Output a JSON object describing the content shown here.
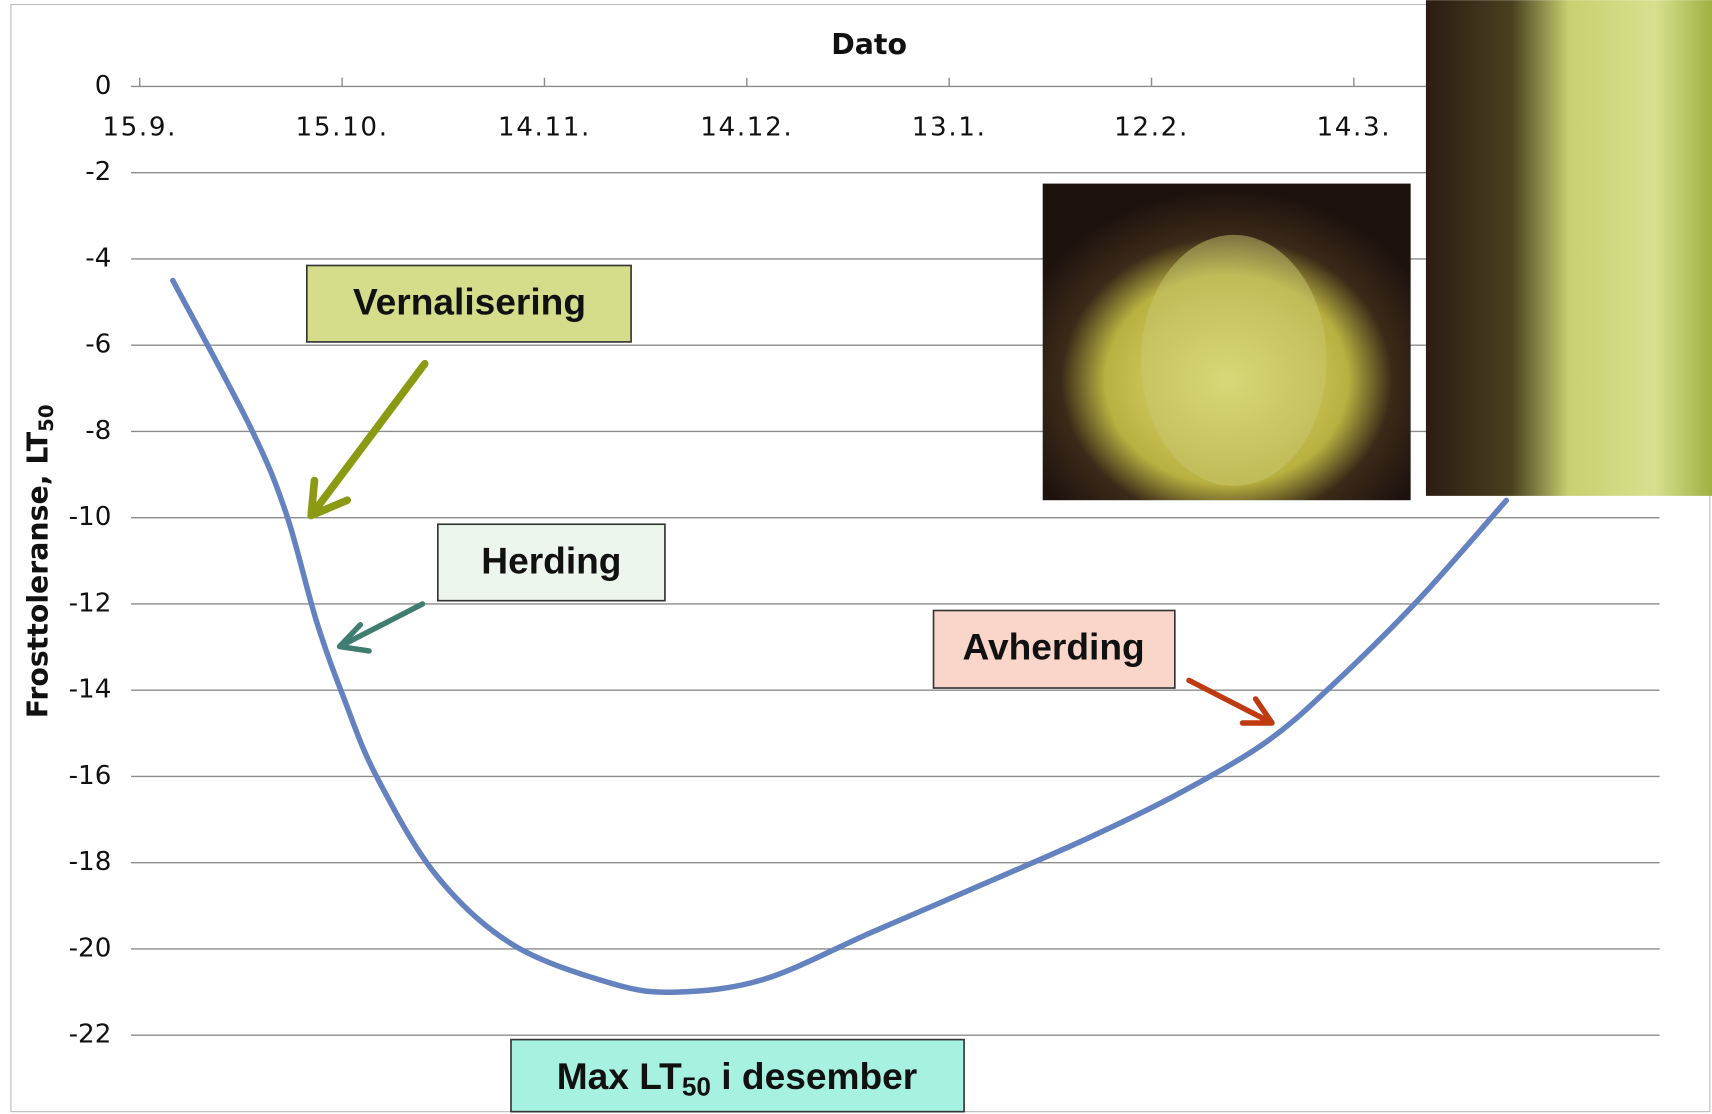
{
  "chart_data": {
    "type": "line",
    "x_label": "Dato",
    "y_label": {
      "text": "Frosttoleranse, LT",
      "subscript": "50"
    },
    "xlim": [
      0,
      225
    ],
    "xticks": [
      {
        "value": 0,
        "label": "15.9."
      },
      {
        "value": 30,
        "label": "15.10."
      },
      {
        "value": 60,
        "label": "14.11."
      },
      {
        "value": 90,
        "label": "14.12."
      },
      {
        "value": 120,
        "label": "13.1."
      },
      {
        "value": 150,
        "label": "12.2."
      },
      {
        "value": 180,
        "label": "14.3."
      }
    ],
    "ylim": [
      0,
      -22
    ],
    "yticks": [
      0,
      -2,
      -4,
      -6,
      -8,
      -10,
      -12,
      -14,
      -16,
      -18,
      -20,
      -22
    ],
    "grid": true,
    "series": [
      {
        "color": "#6482bf",
        "x": [
          4.9,
          16.4,
          21.7,
          26.2,
          30.3,
          35.1,
          44,
          55.3,
          70,
          79.6,
          92.6,
          108.7,
          125,
          141,
          154,
          167,
          176.7,
          189.6,
          202.6
        ],
        "values": [
          -4.5,
          -7.9,
          -9.9,
          -12.4,
          -14.2,
          -16.0,
          -18.3,
          -19.9,
          -20.8,
          -21.0,
          -20.7,
          -19.6,
          -18.5,
          -17.4,
          -16.4,
          -15.2,
          -13.9,
          -11.9,
          -9.6
        ]
      }
    ],
    "annotations": [
      {
        "text": "Vernalisering"
      },
      {
        "text": "Herding"
      },
      {
        "text": "Avherding"
      },
      {
        "text": "Max LT",
        "subscript": "50",
        "text_after": " i desember"
      }
    ]
  }
}
